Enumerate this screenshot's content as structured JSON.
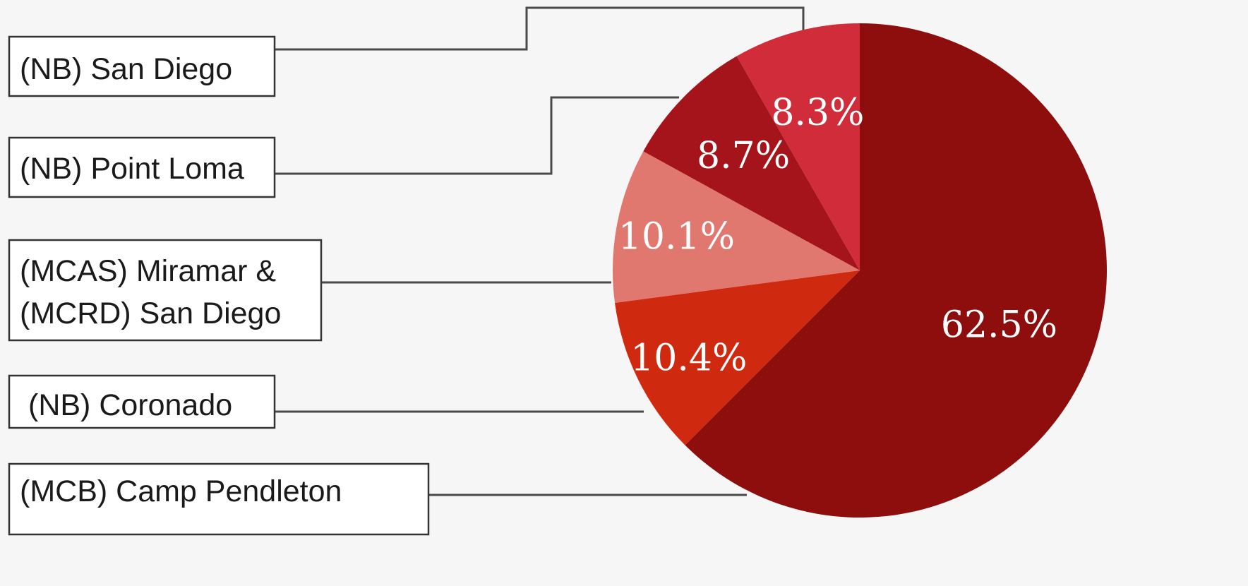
{
  "chart_data": {
    "type": "pie",
    "title": "",
    "slices": [
      {
        "label": "(NB) San Diego",
        "value": 8.3,
        "display": "8.3%",
        "color": "#d02c3a"
      },
      {
        "label": "(NB) Point Loma",
        "value": 8.7,
        "display": "8.7%",
        "color": "#a5141a"
      },
      {
        "label": "(MCAS) Miramar & (MCRD) San Diego",
        "label_lines": [
          "(MCAS) Miramar &",
          "(MCRD) San Diego"
        ],
        "value": 10.1,
        "display": "10.1%",
        "color": "#e17870"
      },
      {
        "label": "(NB) Coronado",
        "value": 10.4,
        "display": "10.4%",
        "color": "#cf2a10"
      },
      {
        "label": "(MCB) Camp Pendleton",
        "value": 62.5,
        "display": "62.5%",
        "color": "#8e0d0d"
      }
    ],
    "legend_position": "left"
  }
}
